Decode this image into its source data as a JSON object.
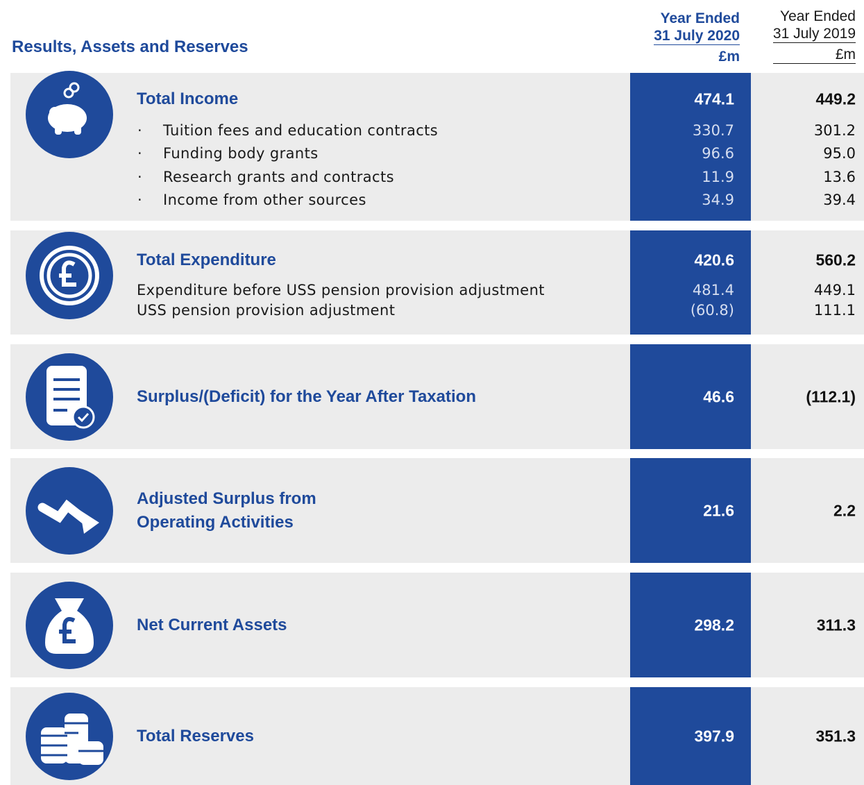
{
  "title": "Results, Assets and Reserves",
  "columns": [
    {
      "line1": "Year Ended",
      "line2": "31 July 2020",
      "unit": "£m"
    },
    {
      "line1": "Year Ended",
      "line2": "31 July 2019",
      "unit": "£m"
    }
  ],
  "sections": [
    {
      "label": "Total Income",
      "values": [
        "474.1",
        "449.2"
      ],
      "bulleted": true,
      "items": [
        {
          "label": "Tuition fees and education contracts",
          "values": [
            "330.7",
            "301.2"
          ]
        },
        {
          "label": "Funding body grants",
          "values": [
            "96.6",
            "95.0"
          ]
        },
        {
          "label": "Research grants and contracts",
          "values": [
            "11.9",
            "13.6"
          ]
        },
        {
          "label": "Income from other sources",
          "values": [
            "34.9",
            "39.4"
          ]
        }
      ]
    },
    {
      "label": "Total Expenditure",
      "values": [
        "420.6",
        "560.2"
      ],
      "bulleted": false,
      "items": [
        {
          "label": "Expenditure before USS pension provision adjustment",
          "values": [
            "481.4",
            "449.1"
          ]
        },
        {
          "label": "USS pension provision adjustment",
          "values": [
            "(60.8)",
            "111.1"
          ]
        }
      ]
    },
    {
      "label": "Surplus/(Deficit) for the Year After Taxation",
      "values": [
        "46.6",
        "(112.1)"
      ],
      "items": []
    },
    {
      "label": "Adjusted Surplus from Operating Activities",
      "values": [
        "21.6",
        "2.2"
      ],
      "items": []
    },
    {
      "label": "Net Current Assets",
      "values": [
        "298.2",
        "311.3"
      ],
      "items": []
    },
    {
      "label": "Total Reserves",
      "values": [
        "397.9",
        "351.3"
      ],
      "items": []
    }
  ]
}
